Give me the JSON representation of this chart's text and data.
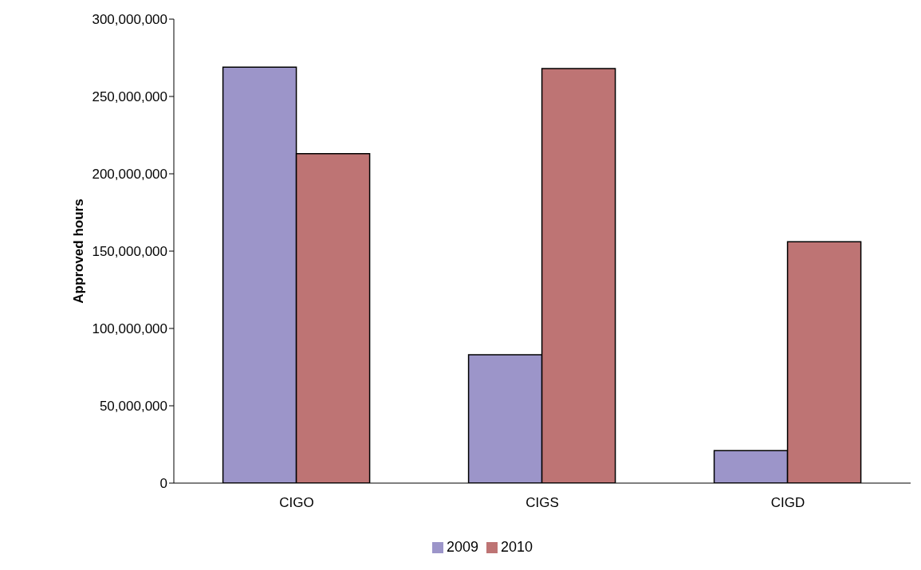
{
  "chart_data": {
    "type": "bar",
    "ylabel": "Approved hours",
    "categories": [
      "CIGO",
      "CIGS",
      "CIGD"
    ],
    "series": [
      {
        "name": "2009",
        "color": "#9c95c9",
        "values": [
          269000000,
          83000000,
          21000000
        ]
      },
      {
        "name": "2010",
        "color": "#be7474",
        "values": [
          213000000,
          268000000,
          156000000
        ]
      }
    ],
    "ylim": [
      0,
      300000000
    ],
    "yticks": [
      {
        "value": 0,
        "label": "0"
      },
      {
        "value": 50000000,
        "label": "50,000,000"
      },
      {
        "value": 100000000,
        "label": "100,000,000"
      },
      {
        "value": 150000000,
        "label": "150,000,000"
      },
      {
        "value": 200000000,
        "label": "200,000,000"
      },
      {
        "value": 250000000,
        "label": "250,000,000"
      },
      {
        "value": 300000000,
        "label": "300,000,000"
      }
    ],
    "grid": false,
    "legend": "bottom"
  }
}
